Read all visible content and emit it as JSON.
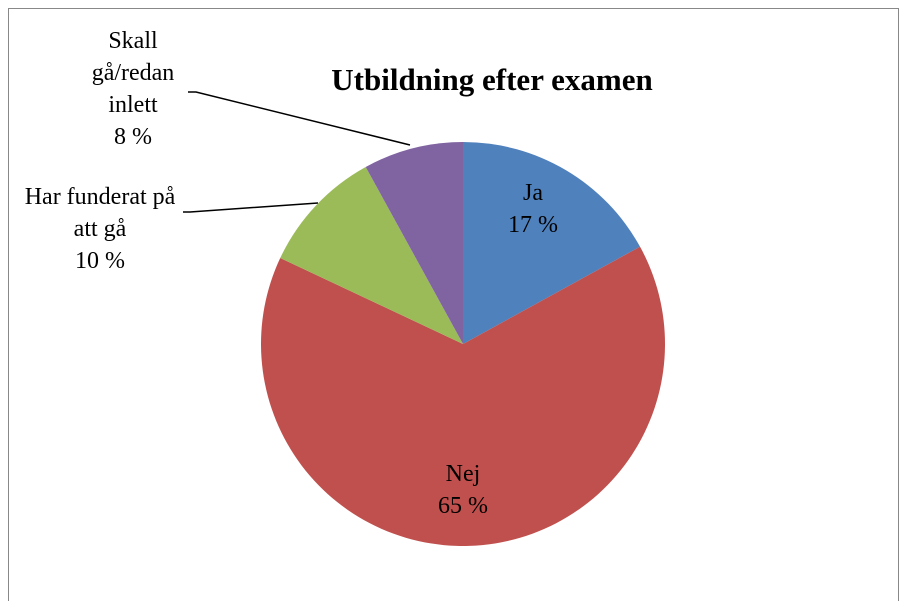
{
  "chart_data": {
    "type": "pie",
    "title": "Utbildning efter examen",
    "categories": [
      "Ja",
      "Nej",
      "Har funderat på att gå",
      "Skall gå/redan inlett"
    ],
    "values": [
      17,
      65,
      10,
      8
    ],
    "value_labels": [
      "17 %",
      "65 %",
      "10 %",
      "8 %"
    ],
    "colors": [
      "#4f81bd",
      "#c0504d",
      "#9bbb59",
      "#8064a2"
    ]
  }
}
